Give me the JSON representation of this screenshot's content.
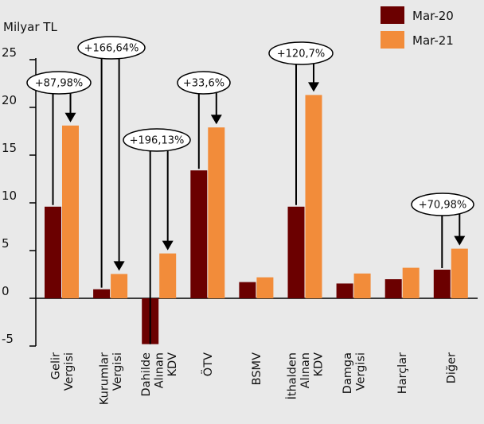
{
  "chart_data": {
    "type": "bar",
    "unit_label": "Milyar TL",
    "ylim": [
      -5,
      25
    ],
    "yticks": [
      -5,
      0,
      5,
      10,
      15,
      20,
      25
    ],
    "categories": [
      [
        "Gelir",
        "Vergisi"
      ],
      [
        "Kurumlar",
        "Vergisi"
      ],
      [
        "Dahilde",
        "Alınan",
        "KDV"
      ],
      [
        "ÖTV"
      ],
      [
        "BSMV"
      ],
      [
        "İthalden",
        "Alınan",
        "KDV"
      ],
      [
        "Damga",
        "Vergisi"
      ],
      [
        "Harçlar"
      ],
      [
        "Diğer"
      ]
    ],
    "series": [
      {
        "name": "Mar-20",
        "color": "#6b0000",
        "values": [
          9.6,
          0.95,
          -4.8,
          13.4,
          1.7,
          9.6,
          1.55,
          2.0,
          3.0
        ]
      },
      {
        "name": "Mar-21",
        "color": "#f28c3a",
        "values": [
          18.1,
          2.55,
          4.7,
          17.9,
          2.2,
          21.3,
          2.6,
          3.2,
          5.2
        ]
      }
    ],
    "annotations": [
      {
        "category": 0,
        "text": "+87,98%"
      },
      {
        "category": 1,
        "text": "+166,64%"
      },
      {
        "category": 2,
        "text": "+196,13%"
      },
      {
        "category": 3,
        "text": "+33,6%"
      },
      {
        "category": 5,
        "text": "+120,7%"
      },
      {
        "category": 8,
        "text": "+70,98%"
      }
    ],
    "legend_position": "top-right",
    "grid": false
  }
}
